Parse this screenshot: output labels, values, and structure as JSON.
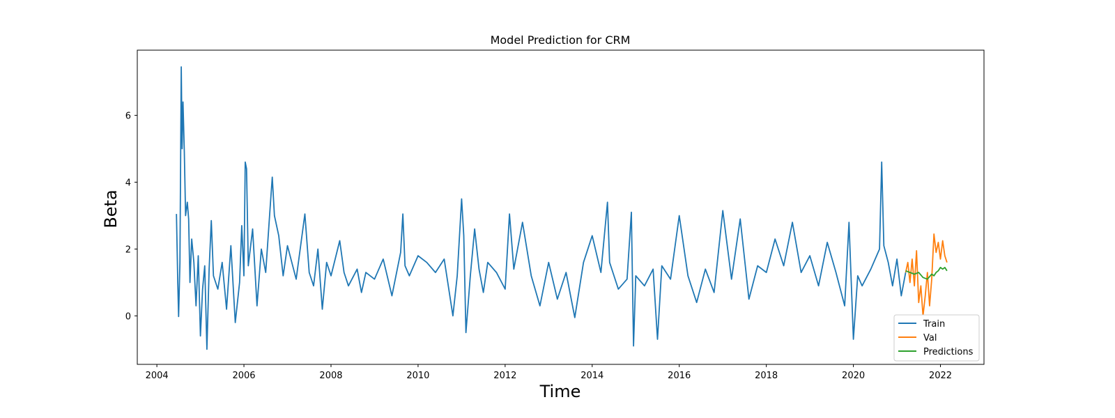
{
  "chart_data": {
    "type": "line",
    "title": "Model Prediction for CRM",
    "xlabel": "Time",
    "ylabel": "Beta",
    "xlim": [
      2003.55,
      2023.0
    ],
    "ylim": [
      -1.45,
      7.95
    ],
    "x_ticks": [
      2004,
      2006,
      2008,
      2010,
      2012,
      2014,
      2016,
      2018,
      2020,
      2022
    ],
    "y_ticks": [
      0,
      2,
      4,
      6
    ],
    "grid": false,
    "legend_position": "lower-right",
    "series": [
      {
        "name": "Train",
        "color": "#1f77b4",
        "x": [
          2004.45,
          2004.48,
          2004.5,
          2004.53,
          2004.56,
          2004.58,
          2004.6,
          2004.63,
          2004.66,
          2004.7,
          2004.73,
          2004.76,
          2004.8,
          2004.85,
          2004.9,
          2004.95,
          2005.0,
          2005.05,
          2005.1,
          2005.15,
          2005.2,
          2005.25,
          2005.3,
          2005.4,
          2005.5,
          2005.6,
          2005.7,
          2005.8,
          2005.9,
          2005.95,
          2006.0,
          2006.03,
          2006.06,
          2006.1,
          2006.2,
          2006.3,
          2006.4,
          2006.5,
          2006.6,
          2006.65,
          2006.7,
          2006.8,
          2006.9,
          2007.0,
          2007.2,
          2007.4,
          2007.5,
          2007.6,
          2007.7,
          2007.8,
          2007.9,
          2008.0,
          2008.2,
          2008.3,
          2008.4,
          2008.6,
          2008.7,
          2008.8,
          2009.0,
          2009.2,
          2009.4,
          2009.6,
          2009.65,
          2009.7,
          2009.8,
          2010.0,
          2010.2,
          2010.4,
          2010.6,
          2010.8,
          2010.9,
          2011.0,
          2011.05,
          2011.1,
          2011.2,
          2011.3,
          2011.4,
          2011.5,
          2011.6,
          2011.8,
          2012.0,
          2012.1,
          2012.2,
          2012.4,
          2012.6,
          2012.8,
          2013.0,
          2013.2,
          2013.4,
          2013.6,
          2013.8,
          2014.0,
          2014.2,
          2014.35,
          2014.4,
          2014.6,
          2014.8,
          2014.9,
          2014.95,
          2015.0,
          2015.2,
          2015.4,
          2015.5,
          2015.6,
          2015.8,
          2016.0,
          2016.2,
          2016.4,
          2016.6,
          2016.8,
          2017.0,
          2017.2,
          2017.4,
          2017.6,
          2017.8,
          2018.0,
          2018.2,
          2018.4,
          2018.6,
          2018.8,
          2019.0,
          2019.2,
          2019.4,
          2019.6,
          2019.8,
          2019.9,
          2020.0,
          2020.1,
          2020.2,
          2020.4,
          2020.6,
          2020.65,
          2020.7,
          2020.8,
          2020.9,
          2021.0,
          2021.1,
          2021.2
        ],
        "y": [
          3.05,
          1.0,
          -0.02,
          1.6,
          7.45,
          5.0,
          6.4,
          4.9,
          3.0,
          3.4,
          2.9,
          1.0,
          2.3,
          1.6,
          0.3,
          1.8,
          -0.6,
          0.8,
          1.5,
          -1.0,
          1.4,
          2.85,
          1.2,
          0.8,
          1.6,
          0.2,
          2.1,
          -0.2,
          1.0,
          2.7,
          1.2,
          4.6,
          4.4,
          1.5,
          2.6,
          0.3,
          2.0,
          1.3,
          3.2,
          4.15,
          3.0,
          2.4,
          1.2,
          2.1,
          1.1,
          3.05,
          1.3,
          0.9,
          2.0,
          0.2,
          1.6,
          1.2,
          2.25,
          1.3,
          0.9,
          1.4,
          0.7,
          1.3,
          1.1,
          1.7,
          0.6,
          1.9,
          3.05,
          1.5,
          1.2,
          1.8,
          1.6,
          1.3,
          1.7,
          0.0,
          1.2,
          3.5,
          2.4,
          -0.5,
          1.2,
          2.6,
          1.4,
          0.7,
          1.6,
          1.3,
          0.8,
          3.05,
          1.4,
          2.8,
          1.2,
          0.3,
          1.6,
          0.5,
          1.3,
          -0.05,
          1.6,
          2.4,
          1.3,
          3.4,
          1.6,
          0.8,
          1.1,
          3.1,
          -0.9,
          1.2,
          0.9,
          1.4,
          -0.7,
          1.5,
          1.1,
          3.0,
          1.2,
          0.4,
          1.4,
          0.7,
          3.15,
          1.1,
          2.9,
          0.5,
          1.5,
          1.3,
          2.3,
          1.5,
          2.8,
          1.3,
          1.8,
          0.9,
          2.2,
          1.3,
          0.3,
          2.8,
          -0.7,
          1.2,
          0.9,
          1.4,
          2.0,
          4.6,
          2.1,
          1.6,
          0.9,
          1.7,
          0.6,
          1.3
        ]
      },
      {
        "name": "Val",
        "color": "#ff7f0e",
        "x": [
          2021.2,
          2021.25,
          2021.3,
          2021.35,
          2021.4,
          2021.45,
          2021.5,
          2021.55,
          2021.6,
          2021.65,
          2021.7,
          2021.75,
          2021.8,
          2021.85,
          2021.9,
          2021.95,
          2022.0,
          2022.05,
          2022.1,
          2022.15
        ],
        "y": [
          1.3,
          1.6,
          1.0,
          1.7,
          0.9,
          1.95,
          0.4,
          0.9,
          0.0,
          0.6,
          1.3,
          0.3,
          1.1,
          2.45,
          1.9,
          2.2,
          1.7,
          2.25,
          1.8,
          1.6
        ]
      },
      {
        "name": "Predictions",
        "color": "#2ca02c",
        "x": [
          2021.2,
          2021.3,
          2021.4,
          2021.5,
          2021.6,
          2021.7,
          2021.8,
          2021.85,
          2021.9,
          2021.95,
          2022.0,
          2022.05,
          2022.1,
          2022.15
        ],
        "y": [
          1.35,
          1.3,
          1.25,
          1.3,
          1.15,
          1.1,
          1.25,
          1.2,
          1.3,
          1.35,
          1.45,
          1.4,
          1.45,
          1.35
        ]
      }
    ]
  }
}
